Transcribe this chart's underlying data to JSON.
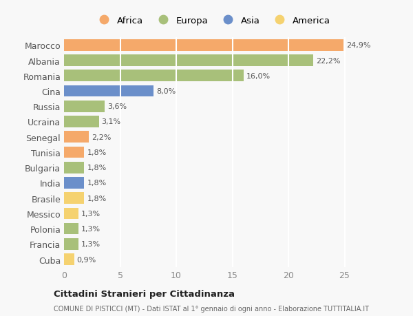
{
  "categories": [
    "Marocco",
    "Albania",
    "Romania",
    "Cina",
    "Russia",
    "Ucraina",
    "Senegal",
    "Tunisia",
    "Bulgaria",
    "India",
    "Brasile",
    "Messico",
    "Polonia",
    "Francia",
    "Cuba"
  ],
  "values": [
    24.9,
    22.2,
    16.0,
    8.0,
    3.6,
    3.1,
    2.2,
    1.8,
    1.8,
    1.8,
    1.8,
    1.3,
    1.3,
    1.3,
    0.9
  ],
  "labels": [
    "24,9%",
    "22,2%",
    "16,0%",
    "8,0%",
    "3,6%",
    "3,1%",
    "2,2%",
    "1,8%",
    "1,8%",
    "1,8%",
    "1,8%",
    "1,3%",
    "1,3%",
    "1,3%",
    "0,9%"
  ],
  "continents": [
    "Africa",
    "Europa",
    "Europa",
    "Asia",
    "Europa",
    "Europa",
    "Africa",
    "Africa",
    "Europa",
    "Asia",
    "America",
    "America",
    "Europa",
    "Europa",
    "America"
  ],
  "colors": {
    "Africa": "#F5A96A",
    "Europa": "#A8C07A",
    "Asia": "#6B8FCA",
    "America": "#F5D270"
  },
  "xlim": [
    0,
    26.5
  ],
  "xticks": [
    0,
    5,
    10,
    15,
    20,
    25
  ],
  "title": "Cittadini Stranieri per Cittadinanza",
  "subtitle": "COMUNE DI PISTICCI (MT) - Dati ISTAT al 1° gennaio di ogni anno - Elaborazione TUTTITALIA.IT",
  "background_color": "#f8f8f8",
  "plot_bg_color": "#f8f8f8",
  "grid_color": "#ffffff",
  "bar_height": 0.75,
  "label_fontsize": 8,
  "tick_fontsize": 9
}
